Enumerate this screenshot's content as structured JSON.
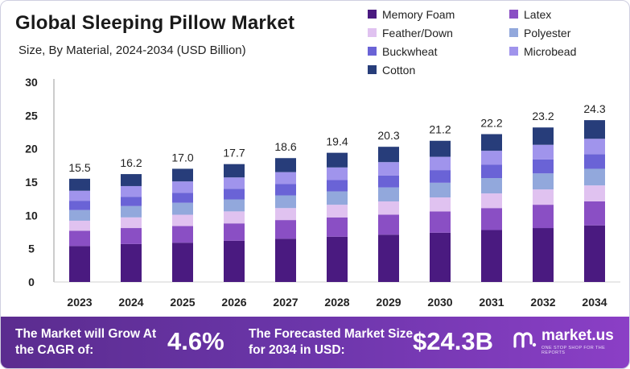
{
  "header": {
    "title": "Global Sleeping Pillow Market",
    "subtitle": "Size, By Material, 2024-2034 (USD Billion)"
  },
  "chart_data": {
    "type": "bar",
    "stacked": true,
    "categories": [
      "2023",
      "2024",
      "2025",
      "2026",
      "2027",
      "2028",
      "2029",
      "2030",
      "2031",
      "2032",
      "2034"
    ],
    "totals": [
      15.5,
      16.2,
      17.0,
      17.7,
      18.6,
      19.4,
      20.3,
      21.2,
      22.2,
      23.2,
      24.3
    ],
    "total_labels": [
      "15.5",
      "16.2",
      "17.0",
      "17.7",
      "18.6",
      "19.4",
      "20.3",
      "21.2",
      "22.2",
      "23.2",
      "24.3"
    ],
    "ylim": [
      0,
      30
    ],
    "yticks": [
      "0",
      "5",
      "10",
      "15",
      "20",
      "25",
      "30"
    ],
    "series": [
      {
        "name": "Memory Foam",
        "color": "#4a1a80",
        "values": [
          5.4,
          5.7,
          5.9,
          6.2,
          6.5,
          6.8,
          7.1,
          7.4,
          7.8,
          8.1,
          8.5
        ]
      },
      {
        "name": "Latex",
        "color": "#8a4fc4",
        "values": [
          2.3,
          2.4,
          2.5,
          2.6,
          2.8,
          2.9,
          3.0,
          3.2,
          3.3,
          3.5,
          3.6
        ]
      },
      {
        "name": "Feather/Down",
        "color": "#e0c2f0",
        "values": [
          1.5,
          1.6,
          1.7,
          1.8,
          1.8,
          1.9,
          2.0,
          2.1,
          2.2,
          2.3,
          2.4
        ]
      },
      {
        "name": "Polyester",
        "color": "#92a8dc",
        "values": [
          1.6,
          1.7,
          1.8,
          1.8,
          1.9,
          2.0,
          2.1,
          2.2,
          2.3,
          2.4,
          2.5
        ]
      },
      {
        "name": "Buckwheat",
        "color": "#6a63d6",
        "values": [
          1.4,
          1.4,
          1.5,
          1.6,
          1.7,
          1.7,
          1.8,
          1.9,
          2.0,
          2.1,
          2.2
        ]
      },
      {
        "name": "Microbead",
        "color": "#a094ec",
        "values": [
          1.5,
          1.6,
          1.7,
          1.7,
          1.8,
          1.9,
          2.0,
          2.0,
          2.1,
          2.2,
          2.3
        ]
      },
      {
        "name": "Cotton",
        "color": "#273d7a",
        "values": [
          1.8,
          1.8,
          1.9,
          2.0,
          2.1,
          2.2,
          2.3,
          2.4,
          2.5,
          2.6,
          2.8
        ]
      }
    ],
    "legend_position": "top-right",
    "grid": false
  },
  "footer": {
    "cagr_label": "The Market will Grow At the CAGR of:",
    "cagr_value": "4.6%",
    "forecast_label": "The Forecasted Market Size for 2034 in USD:",
    "forecast_value": "$24.3B",
    "brand": "market.us",
    "tagline": "ONE STOP SHOP FOR THE REPORTS",
    "logo_icon": "market-us-logo"
  }
}
